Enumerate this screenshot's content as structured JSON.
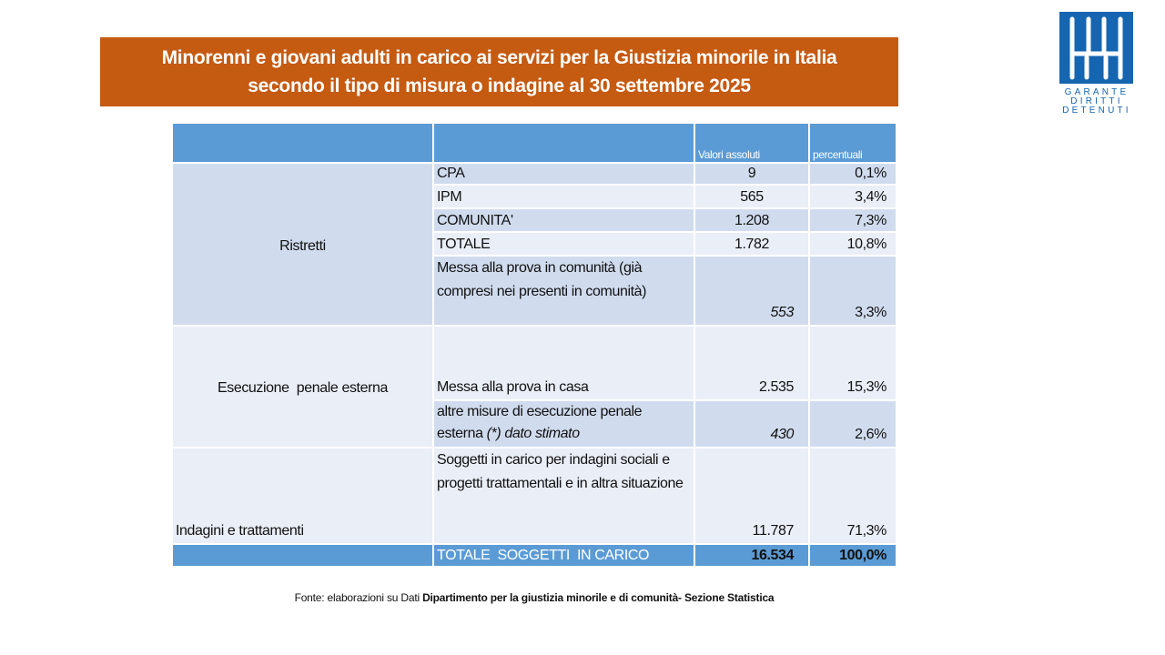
{
  "title": {
    "line1": "Minorenni e giovani adulti in carico ai servizi per la Giustizia minorile in Italia",
    "line2": "secondo il tipo di misura o indagine al 30 settembre 2025"
  },
  "logo": {
    "line1": "GARANTE",
    "line2": "DIRITTI",
    "line3": "DETENUTI"
  },
  "table": {
    "headers": {
      "abs": "Valori assoluti",
      "pct": "percentuali"
    },
    "groups": {
      "ristretti": "Ristretti",
      "esecuzione": "Esecuzione  penale esterna",
      "indagini": "Indagini e trattamenti"
    },
    "rows": [
      {
        "label": "CPA",
        "abs": "9",
        "pct": "0,1%"
      },
      {
        "label": "IPM",
        "abs": "565",
        "pct": "3,4%"
      },
      {
        "label": "COMUNITA'",
        "abs": "1.208",
        "pct": "7,3%"
      },
      {
        "label": "TOTALE",
        "abs": "1.782",
        "pct": "10,8%"
      },
      {
        "label": "Messa alla prova in comunità (già compresi nei presenti in comunità)",
        "abs": "553",
        "pct": "3,3%"
      },
      {
        "label": "Messa alla prova in casa",
        "abs": "2.535",
        "pct": "15,3%"
      },
      {
        "label": "altre misure di esecuzione penale esterna",
        "note": "(*) dato stimato",
        "abs": "430",
        "pct": "2,6%"
      },
      {
        "label": "Soggetti in carico per indagini sociali e progetti trattamentali e in altra situazione",
        "abs": "11.787",
        "pct": "71,3%"
      }
    ],
    "total": {
      "label": "TOTALE  SOGGETTI  IN CARICO",
      "abs": "16.534",
      "pct": "100,0%"
    }
  },
  "source": {
    "prefix": "Fonte: elaborazioni su Dati ",
    "bold": "Dipartimento per la giustizia minorile e di comunità- Sezione Statistica"
  }
}
